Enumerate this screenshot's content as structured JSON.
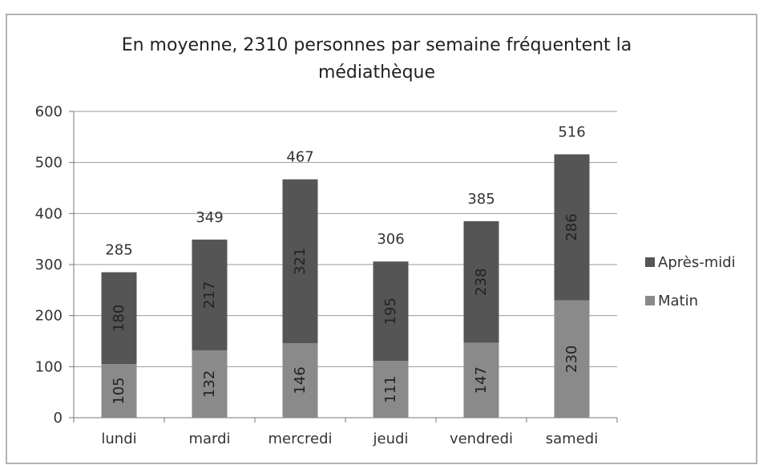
{
  "chart_data": {
    "type": "stacked_bar",
    "title": "En moyenne, 2310 personnes par semaine fréquentent la médiathèque",
    "categories": [
      "lundi",
      "mardi",
      "mercredi",
      "jeudi",
      "vendredi",
      "samedi"
    ],
    "series": [
      {
        "name": "Matin",
        "color": "#8a8a8a",
        "values": [
          105,
          132,
          146,
          111,
          147,
          230
        ]
      },
      {
        "name": "Après-midi",
        "color": "#555555",
        "values": [
          180,
          217,
          321,
          195,
          238,
          286
        ]
      }
    ],
    "total_labels": [
      285,
      349,
      467,
      306,
      385,
      516
    ],
    "ylim": [
      0,
      600
    ],
    "yticks": [
      0,
      100,
      200,
      300,
      400,
      500,
      600
    ],
    "grid": true,
    "legend": "right"
  }
}
